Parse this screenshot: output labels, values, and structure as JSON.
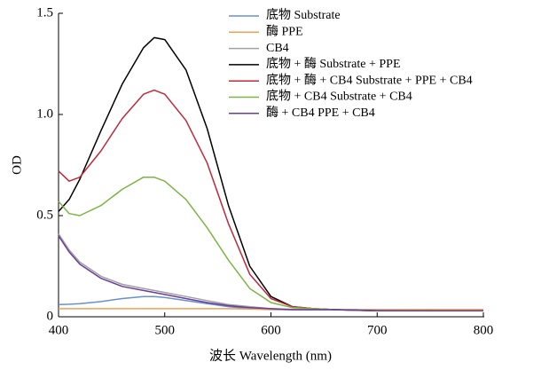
{
  "chart_data": {
    "type": "line",
    "x_label": "波长 Wavelength (nm)",
    "y_label": "OD",
    "x": [
      400,
      410,
      420,
      440,
      460,
      480,
      490,
      500,
      520,
      540,
      560,
      580,
      600,
      620,
      640,
      660,
      700,
      750,
      800
    ],
    "xlim": [
      400,
      800
    ],
    "xticks": [
      400,
      500,
      600,
      700,
      800
    ],
    "ylim": [
      0,
      1.5
    ],
    "yticks": [
      0,
      0.5,
      {
        "value": 1,
        "label": "1.0"
      },
      1.5
    ],
    "grid": false,
    "legend": "upper right",
    "series": [
      {
        "name": "底物  Substrate",
        "color": "#6a8fd0",
        "values": [
          0.06,
          0.062,
          0.065,
          0.075,
          0.09,
          0.1,
          0.1,
          0.095,
          0.08,
          0.065,
          0.05,
          0.04,
          0.035,
          0.035,
          0.035,
          0.035,
          0.035,
          0.035,
          0.035
        ]
      },
      {
        "name": "酶  PPE",
        "color": "#f0a050",
        "values": [
          0.04,
          0.04,
          0.04,
          0.04,
          0.04,
          0.04,
          0.04,
          0.04,
          0.04,
          0.04,
          0.04,
          0.038,
          0.036,
          0.035,
          0.035,
          0.035,
          0.035,
          0.035,
          0.035
        ]
      },
      {
        "name": "CB4",
        "color": "#a0a0a0",
        "values": [
          0.41,
          0.33,
          0.27,
          0.2,
          0.16,
          0.14,
          0.13,
          0.12,
          0.1,
          0.08,
          0.06,
          0.05,
          0.04,
          0.037,
          0.035,
          0.035,
          0.032,
          0.03,
          0.03
        ]
      },
      {
        "name": "底物 + 酶  Substrate + PPE",
        "color": "#000000",
        "values": [
          0.52,
          0.58,
          0.68,
          0.92,
          1.15,
          1.33,
          1.38,
          1.37,
          1.22,
          0.93,
          0.55,
          0.25,
          0.1,
          0.05,
          0.04,
          0.035,
          0.03,
          0.03,
          0.03
        ]
      },
      {
        "name": "底物 + 酶 + CB4  Substrate + PPE + CB4",
        "color": "#c0283a",
        "values": [
          0.72,
          0.67,
          0.69,
          0.82,
          0.98,
          1.1,
          1.12,
          1.1,
          0.97,
          0.76,
          0.46,
          0.21,
          0.09,
          0.05,
          0.04,
          0.035,
          0.03,
          0.03,
          0.03
        ]
      },
      {
        "name": "底物 + CB4  Substrate + CB4",
        "color": "#7cb542",
        "values": [
          0.57,
          0.51,
          0.5,
          0.55,
          0.63,
          0.69,
          0.69,
          0.67,
          0.58,
          0.44,
          0.28,
          0.14,
          0.07,
          0.045,
          0.04,
          0.035,
          0.03,
          0.03,
          0.03
        ]
      },
      {
        "name": "酶 + CB4  PPE + CB4",
        "color": "#6a3d9a",
        "values": [
          0.4,
          0.32,
          0.26,
          0.19,
          0.15,
          0.13,
          0.12,
          0.11,
          0.09,
          0.07,
          0.055,
          0.045,
          0.04,
          0.035,
          0.035,
          0.035,
          0.03,
          0.03,
          0.03
        ]
      }
    ]
  }
}
